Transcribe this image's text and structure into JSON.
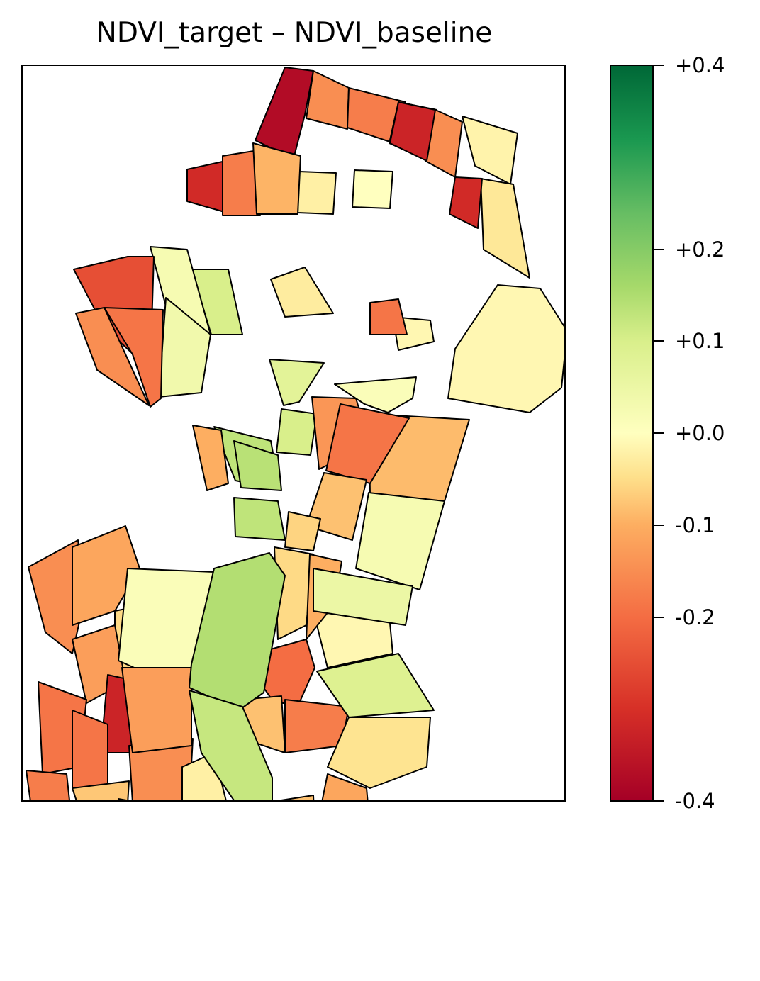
{
  "title": "NDVI_target – NDVI_baseline",
  "colorbar": {
    "colormap": "RdYlGn",
    "range": [
      -0.4,
      0.4
    ],
    "ticks": [
      {
        "value": 0.4,
        "label": "+0.4"
      },
      {
        "value": 0.2,
        "label": "+0.2"
      },
      {
        "value": 0.1,
        "label": "+0.1"
      },
      {
        "value": 0.0,
        "label": "+0.0"
      },
      {
        "value": -0.1,
        "label": "-0.1"
      },
      {
        "value": -0.2,
        "label": "-0.2"
      },
      {
        "value": -0.4,
        "label": "-0.4"
      }
    ]
  },
  "map": {
    "type": "choropleth",
    "border_color": "#000000",
    "regions": [
      {
        "id": "r1",
        "value": -0.38
      },
      {
        "id": "r2",
        "value": -0.2
      },
      {
        "id": "r3",
        "value": -0.22
      },
      {
        "id": "r4",
        "value": -0.28
      },
      {
        "id": "r5",
        "value": -0.2
      },
      {
        "id": "r6",
        "value": -0.03
      },
      {
        "id": "r7",
        "value": -0.33
      },
      {
        "id": "r8",
        "value": -0.22
      },
      {
        "id": "r9",
        "value": 0.0
      },
      {
        "id": "r10",
        "value": -0.04
      },
      {
        "id": "r11",
        "value": -0.15
      },
      {
        "id": "r12",
        "value": 0.08
      },
      {
        "id": "r13",
        "value": 0.02
      },
      {
        "id": "r14",
        "value": -0.05
      },
      {
        "id": "r15",
        "value": 0.03
      },
      {
        "id": "r16",
        "value": 0.06
      },
      {
        "id": "r17",
        "value": -0.28
      },
      {
        "id": "r18",
        "value": -0.06
      },
      {
        "id": "r19",
        "value": 0.08
      },
      {
        "id": "r20",
        "value": -0.02
      },
      {
        "id": "r21",
        "value": 0.12
      },
      {
        "id": "r22",
        "value": -0.19
      },
      {
        "id": "r23",
        "value": 0.01
      },
      {
        "id": "r24",
        "value": -0.14
      },
      {
        "id": "r25",
        "value": 0.12
      },
      {
        "id": "r26",
        "value": -0.23
      },
      {
        "id": "r27",
        "value": -0.13
      },
      {
        "id": "r28",
        "value": -0.1
      },
      {
        "id": "r29",
        "value": 0.02
      },
      {
        "id": "r30",
        "value": -0.23
      },
      {
        "id": "r31",
        "value": -0.2
      },
      {
        "id": "r32",
        "value": -0.2
      },
      {
        "id": "r33",
        "value": -0.17
      },
      {
        "id": "r34",
        "value": -0.09
      },
      {
        "id": "r35",
        "value": -0.18
      },
      {
        "id": "r36",
        "value": -0.23
      },
      {
        "id": "r37",
        "value": -0.34
      },
      {
        "id": "r38",
        "value": -0.22
      },
      {
        "id": "r39",
        "value": -0.23
      },
      {
        "id": "r40",
        "value": -0.2
      },
      {
        "id": "r41",
        "value": 0.01
      },
      {
        "id": "r42",
        "value": -0.12
      },
      {
        "id": "r43",
        "value": -0.18
      },
      {
        "id": "r44",
        "value": -0.04
      },
      {
        "id": "r45",
        "value": -0.12
      },
      {
        "id": "r46",
        "value": -0.24
      },
      {
        "id": "r47",
        "value": -0.09
      },
      {
        "id": "r48",
        "value": -0.13
      },
      {
        "id": "r49",
        "value": -0.02
      },
      {
        "id": "r50",
        "value": -0.16
      },
      {
        "id": "r51",
        "value": -0.22
      },
      {
        "id": "r52",
        "value": -0.07
      },
      {
        "id": "r53",
        "value": -0.17
      },
      {
        "id": "r54",
        "value": -0.13
      },
      {
        "id": "r55",
        "value": -0.2
      },
      {
        "id": "r56",
        "value": -0.34
      },
      {
        "id": "r57",
        "value": -0.33
      },
      {
        "id": "r58",
        "value": 0.04
      },
      {
        "id": "r59",
        "value": -0.13
      },
      {
        "id": "r60",
        "value": -0.05
      },
      {
        "id": "r61",
        "value": 0.07
      },
      {
        "id": "r62",
        "value": 0.14
      },
      {
        "id": "r63",
        "value": 0.11
      },
      {
        "id": "r64",
        "value": 0.13
      },
      {
        "id": "r65",
        "value": -0.16
      },
      {
        "id": "r66",
        "value": -0.02
      },
      {
        "id": "r67",
        "value": -0.23
      }
    ]
  }
}
